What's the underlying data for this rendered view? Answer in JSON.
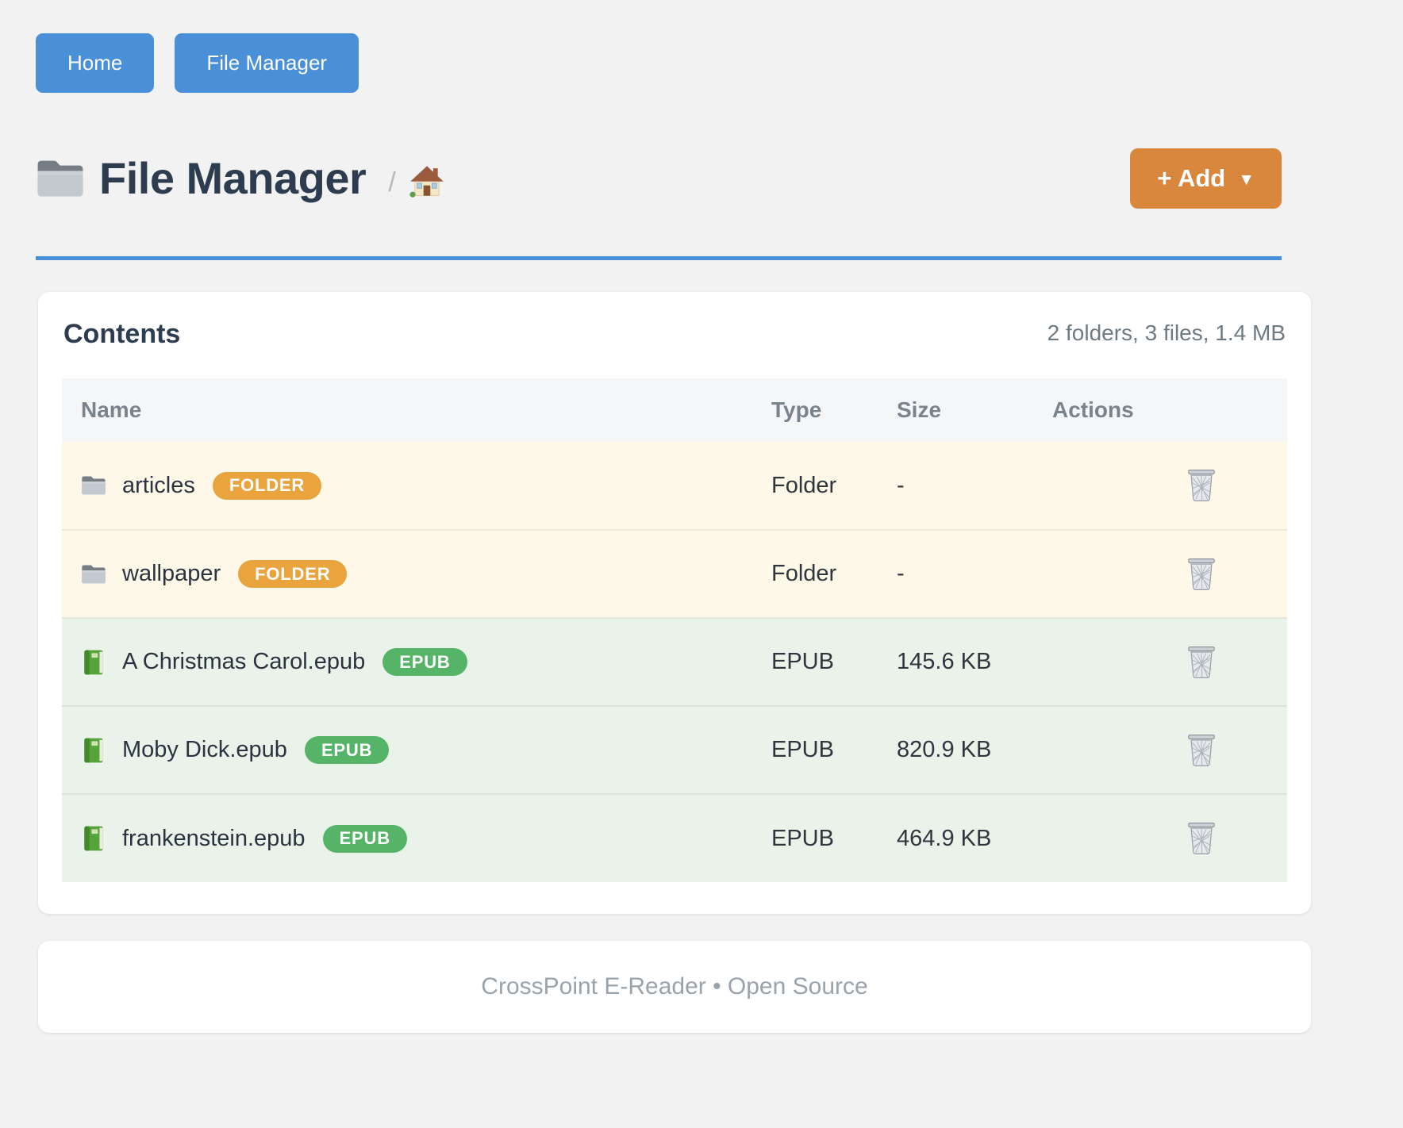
{
  "nav": {
    "buttons": [
      {
        "label": "Home"
      },
      {
        "label": "File Manager"
      }
    ]
  },
  "header": {
    "icon": "folder-icon",
    "title": "File Manager",
    "breadcrumb_separator": "/",
    "home_icon": "home-icon",
    "add_button": {
      "label": "+ Add",
      "caret": "▼"
    }
  },
  "contents": {
    "title": "Contents",
    "summary": "2 folders, 3 files, 1.4 MB",
    "table": {
      "columns": [
        "Name",
        "Type",
        "Size",
        "Actions"
      ],
      "rows": [
        {
          "icon": "folder-icon",
          "name": "articles",
          "badge": "FOLDER",
          "kind": "folder",
          "type": "Folder",
          "size": "-",
          "action_icon": "trash-icon"
        },
        {
          "icon": "folder-icon",
          "name": "wallpaper",
          "badge": "FOLDER",
          "kind": "folder",
          "type": "Folder",
          "size": "-",
          "action_icon": "trash-icon"
        },
        {
          "icon": "book-icon",
          "name": "A Christmas Carol.epub",
          "badge": "EPUB",
          "kind": "epub",
          "type": "EPUB",
          "size": "145.6 KB",
          "action_icon": "trash-icon"
        },
        {
          "icon": "book-icon",
          "name": "Moby Dick.epub",
          "badge": "EPUB",
          "kind": "epub",
          "type": "EPUB",
          "size": "820.9 KB",
          "action_icon": "trash-icon"
        },
        {
          "icon": "book-icon",
          "name": "frankenstein.epub",
          "badge": "EPUB",
          "kind": "epub",
          "type": "EPUB",
          "size": "464.9 KB",
          "action_icon": "trash-icon"
        }
      ]
    }
  },
  "footer": {
    "text": "CrossPoint E-Reader • Open Source"
  },
  "colors": {
    "primary_blue": "#4a90d8",
    "title_text": "#2d3c4e",
    "add_button_orange": "#d8873c",
    "folder_badge_orange": "#e9a43e",
    "epub_badge_green": "#55b468",
    "folder_row_bg": "#fdf8e8",
    "epub_row_bg": "#e9f3e9",
    "page_bg": "#f2f2f3"
  }
}
